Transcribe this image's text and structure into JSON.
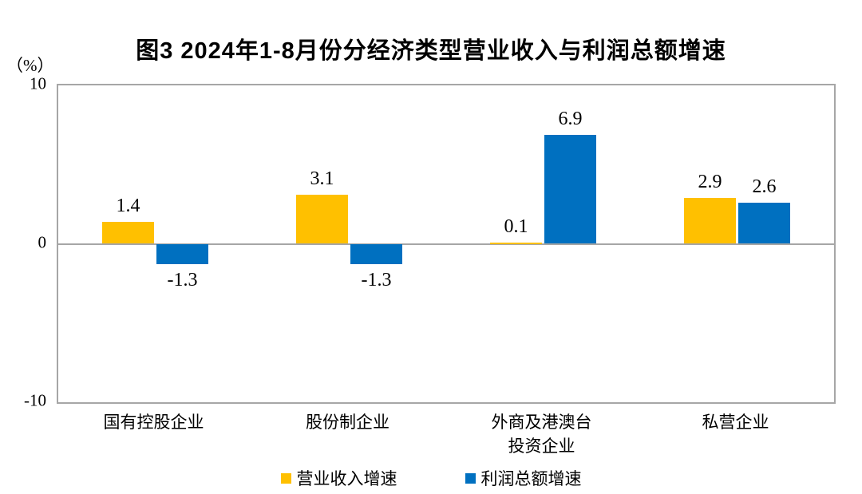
{
  "chart_data": {
    "type": "bar",
    "title": "图3 2024年1-8月份分经济类型营业收入与利润总额增速",
    "ylabel": "（%）",
    "ylim": [
      -10,
      10
    ],
    "yticks": [
      10,
      0,
      -10
    ],
    "grid": "zero-line-only",
    "legend_position": "bottom",
    "categories": [
      "国有控股企业",
      "股份制企业",
      "外商及港澳台\n投资企业",
      "私营企业"
    ],
    "series": [
      {
        "name": "营业收入增速",
        "color": "#FFC000",
        "values": [
          1.4,
          3.1,
          0.1,
          2.9
        ]
      },
      {
        "name": "利润总额增速",
        "color": "#0070C0",
        "values": [
          -1.3,
          -1.3,
          6.9,
          2.6
        ]
      }
    ],
    "value_labels": [
      "1.4",
      "3.1",
      "0.1",
      "2.9",
      "-1.3",
      "-1.3",
      "6.9",
      "2.6"
    ],
    "colors": {
      "axis_border": "#A6A6A6",
      "text": "#000000"
    }
  }
}
